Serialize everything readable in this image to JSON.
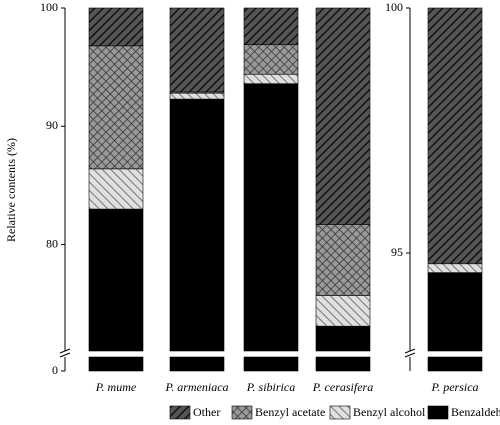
{
  "chart_data": [
    {
      "type": "bar",
      "stacked": true,
      "y_label": "Relative contents (%)",
      "categories": [
        "P. mume",
        "P. armeniaca",
        "P. sibirica",
        "P. cerasifera"
      ],
      "series": [
        {
          "name": "Benzaldehyde",
          "color": "#000000",
          "pattern": "solid",
          "values": [
            83.0,
            92.3,
            93.6,
            73.1
          ]
        },
        {
          "name": "Benzyl alcohol",
          "color": "#c8c8c8",
          "pattern": "diagonal-light",
          "values": [
            3.4,
            0.5,
            0.8,
            2.6
          ]
        },
        {
          "name": "Benzyl acetate",
          "color": "#8c8c8c",
          "pattern": "crosshatch",
          "values": [
            10.4,
            0.1,
            2.5,
            6.0
          ]
        },
        {
          "name": "Other",
          "color": "#404040",
          "pattern": "diagonal-dark",
          "values": [
            3.2,
            7.1,
            3.1,
            18.3
          ]
        }
      ],
      "ylim": [
        0,
        100
      ],
      "ybreak": [
        1.2,
        71
      ],
      "yticks": [
        0,
        80,
        90,
        100
      ]
    },
    {
      "type": "bar",
      "stacked": true,
      "categories": [
        "P. persica"
      ],
      "series": [
        {
          "color": "#000000",
          "pattern": "solid",
          "values": [
            94.6
          ]
        },
        {
          "color": "#c8c8c8",
          "pattern": "diagonal-light",
          "values": [
            0.18
          ]
        },
        {
          "color": "#8c8c8c",
          "pattern": "crosshatch",
          "values": [
            0.0
          ]
        },
        {
          "color": "#404040",
          "pattern": "diagonal-dark",
          "values": [
            5.22
          ]
        }
      ],
      "ylim": [
        0,
        100
      ],
      "ybreak": [
        0.3,
        93
      ],
      "yticks": [
        95,
        100
      ]
    }
  ]
}
